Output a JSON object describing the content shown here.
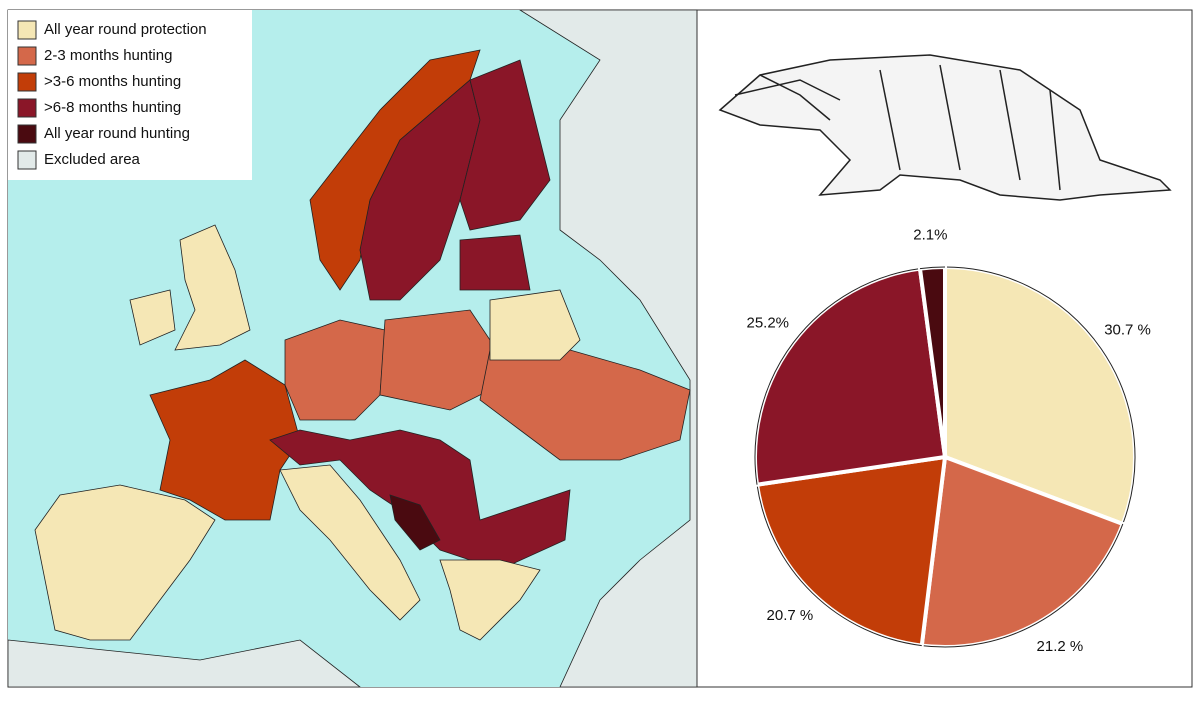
{
  "map": {
    "legend": [
      {
        "label": "All year round protection",
        "color": "#f5e7b5"
      },
      {
        "label": "2-3 months hunting",
        "color": "#d4684a"
      },
      {
        "label": ">3-6 months hunting",
        "color": "#c23d08"
      },
      {
        "label": ">6-8 months hunting",
        "color": "#8a1628"
      },
      {
        "label": "All year round hunting",
        "color": "#4a0a10"
      },
      {
        "label": "Excluded area",
        "color": "#e2eae9"
      }
    ]
  },
  "chart_data": {
    "type": "pie",
    "values": [
      30.7,
      21.2,
      20.7,
      25.2,
      2.1
    ],
    "value_labels": [
      "30.7 %",
      "21.2 %",
      "20.7 %",
      "25.2%",
      "2.1%"
    ],
    "colors": [
      "#f5e7b5",
      "#d4684a",
      "#c23d08",
      "#8a1628",
      "#4a0a10"
    ]
  }
}
